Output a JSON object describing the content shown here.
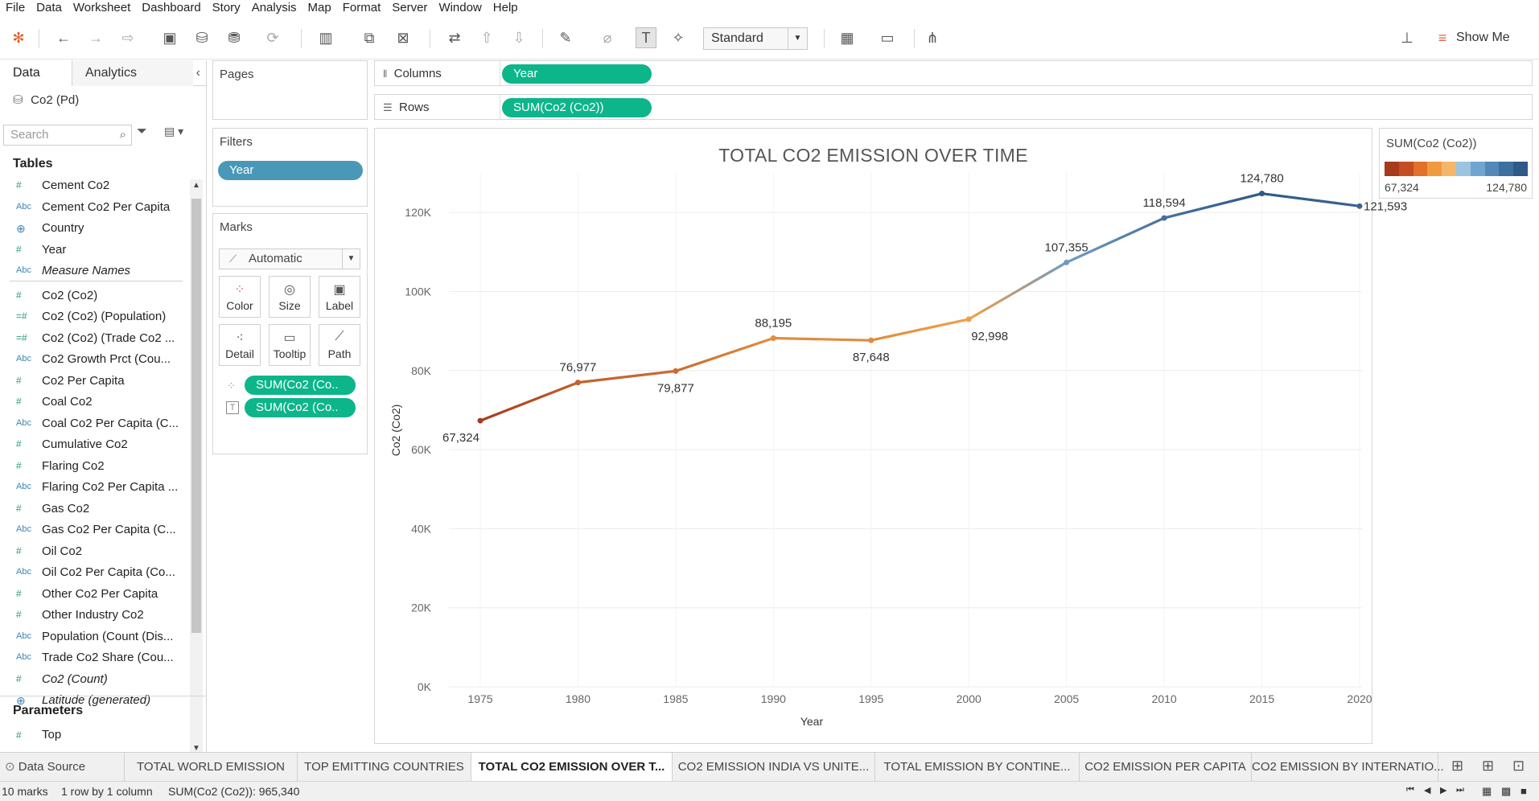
{
  "menu": [
    "File",
    "Data",
    "Worksheet",
    "Dashboard",
    "Story",
    "Analysis",
    "Map",
    "Format",
    "Server",
    "Window",
    "Help"
  ],
  "toolbar": {
    "fit_select": "Standard",
    "show_me": "Show Me"
  },
  "data_pane": {
    "tab_data": "Data",
    "tab_analytics": "Analytics",
    "datasource": "Co2 (Pd)",
    "search_placeholder": "Search",
    "tables_header": "Tables",
    "fields": [
      {
        "type": "measure",
        "label": "Cement Co2"
      },
      {
        "type": "abc",
        "label": "Cement Co2 Per Capita"
      },
      {
        "type": "geo",
        "label": "Country"
      },
      {
        "type": "measure",
        "label": "Year"
      },
      {
        "type": "abc",
        "label": "Measure Names",
        "italic": true
      },
      {
        "type": "measure",
        "label": "Co2 (Co2)"
      },
      {
        "type": "calc",
        "label": "Co2 (Co2) (Population)"
      },
      {
        "type": "calc",
        "label": "Co2 (Co2) (Trade Co2 ..."
      },
      {
        "type": "abc",
        "label": "Co2 Growth Prct (Cou..."
      },
      {
        "type": "measure",
        "label": "Co2 Per Capita"
      },
      {
        "type": "measure",
        "label": "Coal Co2"
      },
      {
        "type": "abc",
        "label": "Coal Co2 Per Capita (C..."
      },
      {
        "type": "measure",
        "label": "Cumulative Co2"
      },
      {
        "type": "measure",
        "label": "Flaring Co2"
      },
      {
        "type": "abc",
        "label": "Flaring Co2 Per Capita ..."
      },
      {
        "type": "measure",
        "label": "Gas Co2"
      },
      {
        "type": "abc",
        "label": "Gas Co2 Per Capita (C..."
      },
      {
        "type": "measure",
        "label": "Oil Co2"
      },
      {
        "type": "abc",
        "label": "Oil Co2 Per Capita (Co..."
      },
      {
        "type": "measure",
        "label": "Other Co2 Per Capita"
      },
      {
        "type": "measure",
        "label": "Other Industry Co2"
      },
      {
        "type": "abc",
        "label": "Population (Count (Dis..."
      },
      {
        "type": "abc",
        "label": "Trade Co2 Share (Cou..."
      },
      {
        "type": "measure",
        "label": "Co2 (Count)",
        "italic": true
      },
      {
        "type": "geo",
        "label": "Latitude (generated)",
        "italic": true
      }
    ],
    "parameters_header": "Parameters",
    "parameters": [
      "Top"
    ]
  },
  "pages_card": {
    "title": "Pages"
  },
  "filters_card": {
    "title": "Filters",
    "pills": [
      "Year"
    ]
  },
  "marks_card": {
    "title": "Marks",
    "mark_type": "Automatic",
    "buttons": [
      "Color",
      "Size",
      "Label",
      "Detail",
      "Tooltip",
      "Path"
    ],
    "pills": [
      "SUM(Co2 (Co..",
      "SUM(Co2 (Co.."
    ]
  },
  "shelves": {
    "columns_label": "Columns",
    "columns_pill": "Year",
    "rows_label": "Rows",
    "rows_pill": "SUM(Co2 (Co2))"
  },
  "legend": {
    "title": "SUM(Co2 (Co2))",
    "min": "67,324",
    "max": "124,780",
    "colors": [
      "#a63a1c",
      "#c44e22",
      "#e0702a",
      "#f09a40",
      "#f5b66a",
      "#9ac4e0",
      "#6fa6cf",
      "#5289b8",
      "#3d6fa0",
      "#2e5a88"
    ]
  },
  "chart_data": {
    "type": "line",
    "title": "TOTAL CO2 EMISSION OVER TIME",
    "xlabel": "Year",
    "ylabel": "Co2 (Co2)",
    "ylim": [
      0,
      130000
    ],
    "yticks": [
      0,
      20000,
      40000,
      60000,
      80000,
      100000,
      120000
    ],
    "ytick_labels": [
      "0K",
      "20K",
      "40K",
      "60K",
      "80K",
      "100K",
      "120K"
    ],
    "categories": [
      "1975",
      "1980",
      "1985",
      "1990",
      "1995",
      "2000",
      "2005",
      "2010",
      "2015",
      "2020"
    ],
    "values": [
      67324,
      76977,
      79877,
      88195,
      87648,
      92998,
      107355,
      118594,
      124780,
      121593
    ],
    "value_labels": [
      "67,324",
      "76,977",
      "79,877",
      "88,195",
      "87,648",
      "92,998",
      "107,355",
      "118,594",
      "124,780",
      "121,593"
    ],
    "label_placement": [
      "below",
      "above",
      "below",
      "above",
      "below",
      "below",
      "above",
      "above",
      "above",
      "right"
    ],
    "grid": true,
    "color_scale": {
      "min": 67324,
      "max": 124780,
      "low": "#a63a1c",
      "mid_low": "#f5a84a",
      "mid_high": "#8fb9d8",
      "high": "#2e5a88"
    }
  },
  "sheet_tabs": {
    "data_source": "Data Source",
    "tabs": [
      {
        "label": "TOTAL WORLD EMISSION",
        "active": false
      },
      {
        "label": "TOP EMITTING COUNTRIES",
        "active": false
      },
      {
        "label": "TOTAL CO2 EMISSION OVER T...",
        "active": true
      },
      {
        "label": "CO2 EMISSION INDIA VS UNITE...",
        "active": false
      },
      {
        "label": "TOTAL EMISSION BY CONTINE...",
        "active": false
      },
      {
        "label": "CO2 EMISSION PER CAPITA",
        "active": false
      },
      {
        "label": "CO2 EMISSION BY INTERNATIO...",
        "active": false
      }
    ]
  },
  "status": {
    "marks": "10 marks",
    "rowcol": "1 row by 1 column",
    "sum": "SUM(Co2 (Co2)): 965,340"
  }
}
